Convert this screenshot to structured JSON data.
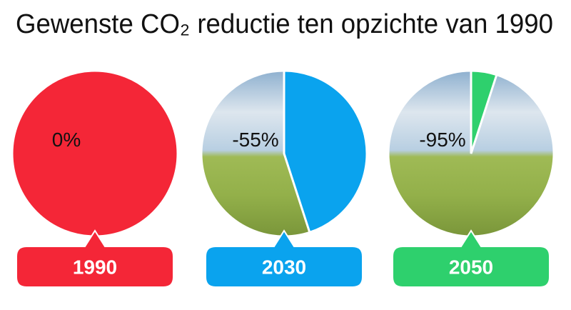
{
  "title": "Gewenste CO₂ reductie ten opzichte van 1990",
  "chart_data": [
    {
      "type": "pie",
      "title": "1990",
      "values": [
        0
      ],
      "value_labels": [
        "0%"
      ],
      "color": "#f42637"
    },
    {
      "type": "pie",
      "title": "2030",
      "values": [
        -55
      ],
      "value_labels": [
        "-55%"
      ],
      "color": "#0aa3ee"
    },
    {
      "type": "pie",
      "title": "2050",
      "values": [
        -95
      ],
      "value_labels": [
        "-95%"
      ],
      "color": "#2ed06d"
    }
  ]
}
